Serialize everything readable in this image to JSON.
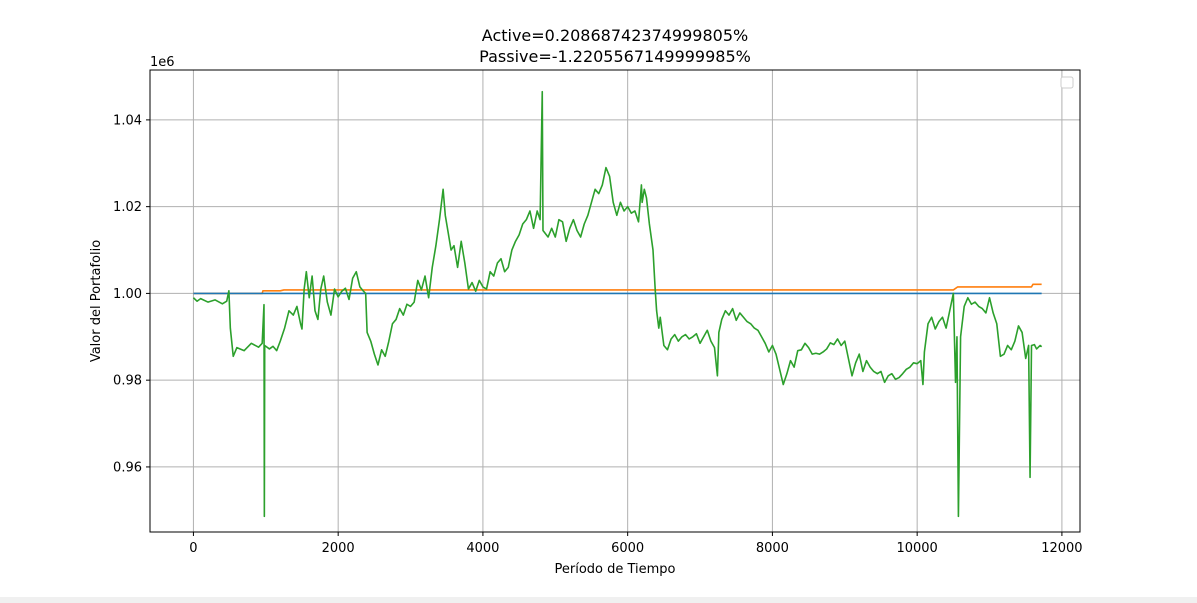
{
  "chart_data": {
    "type": "line",
    "title_line1": "Active=0.20868742374999805%",
    "title_line2": "Passive=-1.2205567149999985%",
    "xlabel": "Período de Tiempo",
    "ylabel": "Valor del Portafolio",
    "y_offset_label": "1e6",
    "xlim": [
      -600,
      12250
    ],
    "ylim": [
      945000,
      1051500
    ],
    "x_ticks": [
      0,
      2000,
      4000,
      6000,
      8000,
      10000,
      12000
    ],
    "x_tick_labels": [
      "0",
      "2000",
      "4000",
      "6000",
      "8000",
      "10000",
      "12000"
    ],
    "y_ticks": [
      960000,
      980000,
      1000000,
      1020000,
      1040000
    ],
    "y_tick_labels": [
      "0.96",
      "0.98",
      "1.00",
      "1.02",
      "1.04"
    ],
    "grid": true,
    "legend": "top-right (empty)",
    "series": [
      {
        "color": "#ff7f0e",
        "points": [
          [
            0,
            1000000
          ],
          [
            950,
            1000000
          ],
          [
            960,
            1000600
          ],
          [
            1200,
            1000600
          ],
          [
            1250,
            1000800
          ],
          [
            3000,
            1000800
          ],
          [
            10500,
            1000800
          ],
          [
            10560,
            1001500
          ],
          [
            11580,
            1001500
          ],
          [
            11600,
            1002100
          ],
          [
            11720,
            1002100
          ]
        ]
      },
      {
        "color": "#1f77b4",
        "points": [
          [
            0,
            1000000
          ],
          [
            11720,
            1000000
          ]
        ]
      },
      {
        "color": "#2ca02c",
        "points": [
          [
            0,
            999000
          ],
          [
            50,
            998200
          ],
          [
            100,
            998800
          ],
          [
            200,
            998000
          ],
          [
            300,
            998500
          ],
          [
            400,
            997600
          ],
          [
            460,
            998200
          ],
          [
            490,
            1000600
          ],
          [
            510,
            992000
          ],
          [
            550,
            985500
          ],
          [
            600,
            987500
          ],
          [
            700,
            986800
          ],
          [
            800,
            988500
          ],
          [
            900,
            987600
          ],
          [
            950,
            988500
          ],
          [
            975,
            997400
          ],
          [
            980,
            948600
          ],
          [
            985,
            988000
          ],
          [
            1050,
            987200
          ],
          [
            1100,
            987800
          ],
          [
            1150,
            986800
          ],
          [
            1200,
            989000
          ],
          [
            1260,
            992000
          ],
          [
            1320,
            996000
          ],
          [
            1380,
            995000
          ],
          [
            1430,
            997000
          ],
          [
            1480,
            993000
          ],
          [
            1500,
            991800
          ],
          [
            1530,
            1001000
          ],
          [
            1560,
            1005000
          ],
          [
            1600,
            999000
          ],
          [
            1640,
            1004000
          ],
          [
            1680,
            996000
          ],
          [
            1720,
            994000
          ],
          [
            1760,
            1001000
          ],
          [
            1800,
            1004000
          ],
          [
            1850,
            998000
          ],
          [
            1900,
            995000
          ],
          [
            1950,
            1001000
          ],
          [
            2000,
            999200
          ],
          [
            2050,
            1000500
          ],
          [
            2100,
            1001200
          ],
          [
            2150,
            998600
          ],
          [
            2200,
            1003500
          ],
          [
            2250,
            1005000
          ],
          [
            2300,
            1001500
          ],
          [
            2350,
            1000500
          ],
          [
            2380,
            1000000
          ],
          [
            2400,
            991000
          ],
          [
            2450,
            989000
          ],
          [
            2500,
            986000
          ],
          [
            2550,
            983500
          ],
          [
            2600,
            987000
          ],
          [
            2650,
            985500
          ],
          [
            2700,
            989000
          ],
          [
            2750,
            993000
          ],
          [
            2800,
            994000
          ],
          [
            2850,
            996500
          ],
          [
            2900,
            995000
          ],
          [
            2950,
            997500
          ],
          [
            3000,
            997000
          ],
          [
            3050,
            998000
          ],
          [
            3100,
            1003000
          ],
          [
            3150,
            1000800
          ],
          [
            3200,
            1004000
          ],
          [
            3250,
            999000
          ],
          [
            3300,
            1006000
          ],
          [
            3350,
            1011000
          ],
          [
            3400,
            1017000
          ],
          [
            3450,
            1024000
          ],
          [
            3480,
            1018000
          ],
          [
            3520,
            1014000
          ],
          [
            3560,
            1010000
          ],
          [
            3600,
            1011000
          ],
          [
            3650,
            1006000
          ],
          [
            3700,
            1012000
          ],
          [
            3750,
            1007000
          ],
          [
            3800,
            1001000
          ],
          [
            3850,
            1002500
          ],
          [
            3900,
            1000500
          ],
          [
            3950,
            1003000
          ],
          [
            4000,
            1001500
          ],
          [
            4050,
            1001000
          ],
          [
            4100,
            1005000
          ],
          [
            4150,
            1004000
          ],
          [
            4200,
            1007000
          ],
          [
            4250,
            1008000
          ],
          [
            4300,
            1005000
          ],
          [
            4350,
            1006000
          ],
          [
            4400,
            1010000
          ],
          [
            4450,
            1012000
          ],
          [
            4500,
            1013500
          ],
          [
            4550,
            1016000
          ],
          [
            4600,
            1017000
          ],
          [
            4650,
            1019000
          ],
          [
            4700,
            1015000
          ],
          [
            4750,
            1019000
          ],
          [
            4790,
            1017000
          ],
          [
            4820,
            1046500
          ],
          [
            4830,
            1014500
          ],
          [
            4900,
            1013000
          ],
          [
            4950,
            1015000
          ],
          [
            5000,
            1013000
          ],
          [
            5050,
            1017000
          ],
          [
            5100,
            1016500
          ],
          [
            5150,
            1012000
          ],
          [
            5200,
            1015000
          ],
          [
            5250,
            1017000
          ],
          [
            5300,
            1014500
          ],
          [
            5350,
            1013000
          ],
          [
            5400,
            1016000
          ],
          [
            5450,
            1018000
          ],
          [
            5500,
            1021000
          ],
          [
            5550,
            1024000
          ],
          [
            5600,
            1023000
          ],
          [
            5650,
            1025000
          ],
          [
            5700,
            1029000
          ],
          [
            5750,
            1027000
          ],
          [
            5800,
            1021000
          ],
          [
            5850,
            1018000
          ],
          [
            5900,
            1021000
          ],
          [
            5950,
            1019000
          ],
          [
            6000,
            1020000
          ],
          [
            6050,
            1018500
          ],
          [
            6100,
            1019000
          ],
          [
            6150,
            1016500
          ],
          [
            6190,
            1025000
          ],
          [
            6200,
            1021000
          ],
          [
            6230,
            1024000
          ],
          [
            6260,
            1022000
          ],
          [
            6300,
            1016000
          ],
          [
            6350,
            1010000
          ],
          [
            6380,
            1001000
          ],
          [
            6400,
            996000
          ],
          [
            6430,
            992000
          ],
          [
            6450,
            994500
          ],
          [
            6500,
            988000
          ],
          [
            6550,
            987000
          ],
          [
            6600,
            989500
          ],
          [
            6650,
            990500
          ],
          [
            6700,
            989000
          ],
          [
            6750,
            990000
          ],
          [
            6800,
            990500
          ],
          [
            6850,
            989500
          ],
          [
            6900,
            990000
          ],
          [
            6950,
            990700
          ],
          [
            7000,
            988500
          ],
          [
            7050,
            990000
          ],
          [
            7100,
            991500
          ],
          [
            7150,
            989000
          ],
          [
            7200,
            987500
          ],
          [
            7240,
            981000
          ],
          [
            7260,
            991000
          ],
          [
            7300,
            994000
          ],
          [
            7350,
            996000
          ],
          [
            7400,
            995000
          ],
          [
            7450,
            996500
          ],
          [
            7500,
            993800
          ],
          [
            7550,
            995500
          ],
          [
            7600,
            994500
          ],
          [
            7650,
            993500
          ],
          [
            7700,
            993000
          ],
          [
            7750,
            992000
          ],
          [
            7800,
            991500
          ],
          [
            7850,
            990000
          ],
          [
            7900,
            988500
          ],
          [
            7950,
            986500
          ],
          [
            8000,
            988000
          ],
          [
            8050,
            986000
          ],
          [
            8100,
            982500
          ],
          [
            8150,
            979000
          ],
          [
            8200,
            981500
          ],
          [
            8250,
            984500
          ],
          [
            8300,
            983000
          ],
          [
            8350,
            986800
          ],
          [
            8400,
            987000
          ],
          [
            8450,
            988500
          ],
          [
            8500,
            987500
          ],
          [
            8550,
            986000
          ],
          [
            8600,
            986200
          ],
          [
            8650,
            986000
          ],
          [
            8700,
            986500
          ],
          [
            8750,
            987200
          ],
          [
            8800,
            988600
          ],
          [
            8850,
            988200
          ],
          [
            8900,
            989500
          ],
          [
            8950,
            988000
          ],
          [
            9000,
            989000
          ],
          [
            9050,
            985000
          ],
          [
            9100,
            981000
          ],
          [
            9150,
            984000
          ],
          [
            9200,
            986000
          ],
          [
            9250,
            982000
          ],
          [
            9300,
            984500
          ],
          [
            9350,
            983000
          ],
          [
            9400,
            982000
          ],
          [
            9450,
            981500
          ],
          [
            9500,
            982000
          ],
          [
            9550,
            979500
          ],
          [
            9600,
            981000
          ],
          [
            9650,
            981500
          ],
          [
            9700,
            980200
          ],
          [
            9750,
            980600
          ],
          [
            9800,
            981500
          ],
          [
            9850,
            982500
          ],
          [
            9900,
            983000
          ],
          [
            9950,
            984000
          ],
          [
            10000,
            983800
          ],
          [
            10050,
            984500
          ],
          [
            10080,
            979000
          ],
          [
            10100,
            986500
          ],
          [
            10150,
            993000
          ],
          [
            10200,
            994500
          ],
          [
            10250,
            991800
          ],
          [
            10300,
            993500
          ],
          [
            10350,
            994500
          ],
          [
            10400,
            992000
          ],
          [
            10450,
            996000
          ],
          [
            10500,
            1000000
          ],
          [
            10530,
            979500
          ],
          [
            10550,
            990000
          ],
          [
            10570,
            948600
          ],
          [
            10600,
            990000
          ],
          [
            10650,
            997000
          ],
          [
            10700,
            999000
          ],
          [
            10750,
            997500
          ],
          [
            10800,
            998000
          ],
          [
            10850,
            997000
          ],
          [
            10900,
            996500
          ],
          [
            10950,
            995500
          ],
          [
            11000,
            999000
          ],
          [
            11050,
            995500
          ],
          [
            11100,
            993000
          ],
          [
            11150,
            985500
          ],
          [
            11200,
            986000
          ],
          [
            11250,
            988000
          ],
          [
            11300,
            987000
          ],
          [
            11350,
            989000
          ],
          [
            11400,
            992500
          ],
          [
            11450,
            991000
          ],
          [
            11500,
            985000
          ],
          [
            11540,
            988000
          ],
          [
            11560,
            957600
          ],
          [
            11580,
            988000
          ],
          [
            11620,
            988200
          ],
          [
            11650,
            987200
          ],
          [
            11700,
            988000
          ],
          [
            11720,
            987700
          ]
        ]
      }
    ]
  }
}
